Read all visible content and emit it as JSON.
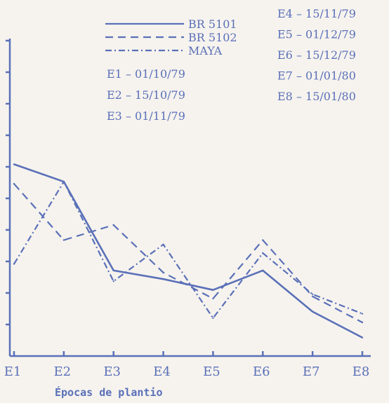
{
  "colors": {
    "ink": "#5a70b8",
    "background": "#f6f3ee"
  },
  "chart_data": {
    "type": "line",
    "title": "",
    "xlabel": "Épocas de plantio",
    "ylabel": "",
    "categories": [
      "E1",
      "E2",
      "E3",
      "E4",
      "E5",
      "E6",
      "E7",
      "E8"
    ],
    "y_axis": {
      "tick_labels": "none",
      "grid": false
    },
    "legend_position": "top-left",
    "series": [
      {
        "name": "BR 5101",
        "line_style": "solid",
        "values": [
          8.4,
          7.6,
          3.5,
          3.1,
          2.6,
          3.5,
          1.6,
          0.4
        ]
      },
      {
        "name": "BR 5102",
        "line_style": "dashed",
        "values": [
          7.5,
          4.9,
          5.6,
          3.4,
          2.2,
          4.9,
          2.3,
          1.1
        ]
      },
      {
        "name": "MAYA",
        "line_style": "dash-dot",
        "values": [
          3.8,
          7.6,
          3.0,
          4.7,
          1.3,
          4.3,
          2.4,
          1.5
        ]
      }
    ],
    "epoch_legend": [
      {
        "label": "E1",
        "date": "01/10/79"
      },
      {
        "label": "E2",
        "date": "15/10/79"
      },
      {
        "label": "E3",
        "date": "01/11/79"
      },
      {
        "label": "E4",
        "date": "15/11/79"
      },
      {
        "label": "E5",
        "date": "01/12/79"
      },
      {
        "label": "E6",
        "date": "15/12/79"
      },
      {
        "label": "E7",
        "date": "01/01/80"
      },
      {
        "label": "E8",
        "date": "15/01/80"
      }
    ]
  }
}
